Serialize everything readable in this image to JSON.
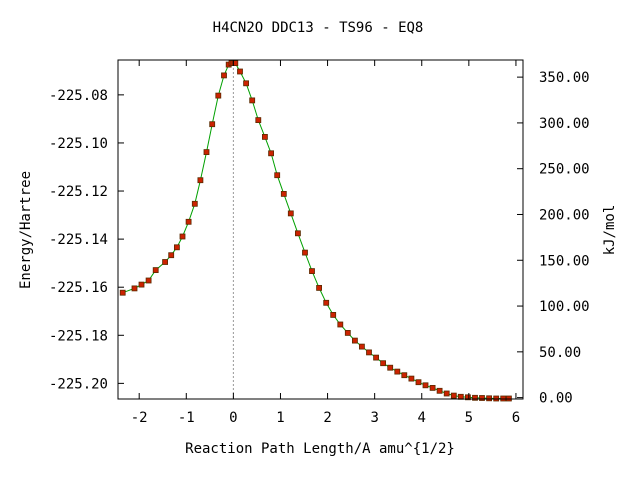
{
  "chart_data": {
    "type": "line",
    "title": "H4CN2O   DDC13 - TS96 - EQ8",
    "xlabel": "Reaction Path Length/A amu^{1/2}",
    "ylabel": "Energy/Hartree",
    "y2label": "kJ/mol",
    "xlim": [
      -2.45,
      6.15
    ],
    "ylim": [
      -225.2065,
      -225.0655
    ],
    "y2lim": [
      -1.5,
      368.7
    ],
    "x_ticks": [
      "-2",
      "-1",
      "0",
      "1",
      "2",
      "3",
      "4",
      "5",
      "6"
    ],
    "y_ticks": [
      "-225.08",
      "-225.10",
      "-225.12",
      "-225.14",
      "-225.16",
      "-225.18",
      "-225.20"
    ],
    "y2_ticks": [
      "350.00",
      "300.00",
      "250.00",
      "200.00",
      "150.00",
      "100.00",
      "50.00",
      "0.00"
    ],
    "ts_marker_x": 0.0,
    "grid": false,
    "colors": {
      "curve": "#00a000",
      "points": "#cc2200",
      "points_edge": "#5a2a00",
      "ts_line": "#999999"
    },
    "series": [
      {
        "x": [
          -2.35,
          -2.1,
          -1.95,
          -1.8,
          -1.65,
          -1.45,
          -1.32,
          -1.2,
          -1.08,
          -0.95,
          -0.82,
          -0.7,
          -0.57,
          -0.45,
          -0.32,
          -0.2,
          -0.1,
          -0.04,
          0.0,
          0.04,
          0.14,
          0.27,
          0.4,
          0.53,
          0.67,
          0.8,
          0.93,
          1.07,
          1.22,
          1.37,
          1.52,
          1.67,
          1.82,
          1.97,
          2.12,
          2.27,
          2.43,
          2.58,
          2.73,
          2.88,
          3.03,
          3.18,
          3.33,
          3.48,
          3.63,
          3.78,
          3.93,
          4.08,
          4.23,
          4.38,
          4.53,
          4.68,
          4.83,
          4.98,
          5.13,
          5.28,
          5.43,
          5.58,
          5.73,
          5.85
        ],
        "y": [
          -225.1623,
          -225.1605,
          -225.1589,
          -225.1572,
          -225.1529,
          -225.1495,
          -225.1467,
          -225.1434,
          -225.1389,
          -225.1328,
          -225.1253,
          -225.1155,
          -225.1038,
          -225.0922,
          -225.0803,
          -225.0719,
          -225.0674,
          -225.0668,
          -225.0668,
          -225.0668,
          -225.0703,
          -225.0752,
          -225.0823,
          -225.0905,
          -225.0975,
          -225.1043,
          -225.1134,
          -225.1212,
          -225.1293,
          -225.1376,
          -225.1456,
          -225.1533,
          -225.1603,
          -225.1665,
          -225.1715,
          -225.1755,
          -225.179,
          -225.1822,
          -225.1847,
          -225.1871,
          -225.1893,
          -225.1916,
          -225.1935,
          -225.1951,
          -225.1966,
          -225.198,
          -225.1995,
          -225.2008,
          -225.2019,
          -225.2031,
          -225.2042,
          -225.2051,
          -225.2056,
          -225.2058,
          -225.206,
          -225.2061,
          -225.2062,
          -225.2063,
          -225.2063,
          -225.2063
        ]
      }
    ]
  }
}
